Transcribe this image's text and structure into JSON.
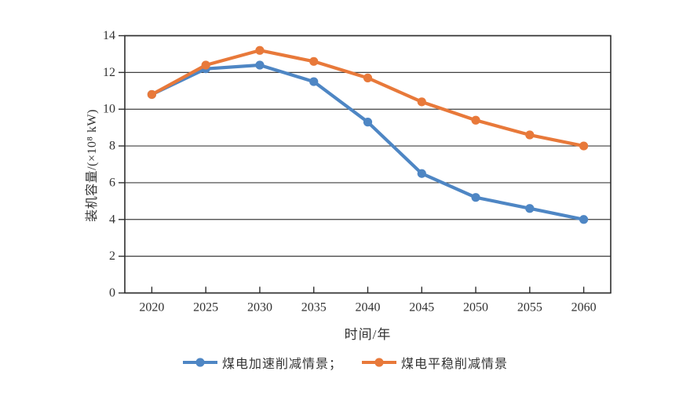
{
  "figure": {
    "background": "#ffffff",
    "axis_color": "#2f2f2f",
    "gridline_color": "#3f3f3f",
    "text_color": "#333333"
  },
  "chart_data": {
    "type": "line",
    "title": "",
    "categories": [
      "2020",
      "2025",
      "2030",
      "2035",
      "2040",
      "2045",
      "2050",
      "2055",
      "2060"
    ],
    "series": [
      {
        "name": "煤电加速削减情景",
        "color": "#4e86c4",
        "values": [
          10.8,
          12.2,
          12.4,
          11.5,
          9.3,
          6.5,
          5.2,
          4.6,
          4.0
        ]
      },
      {
        "name": "煤电平稳削减情景",
        "color": "#e8793a",
        "values": [
          10.8,
          12.4,
          13.2,
          12.6,
          11.7,
          10.4,
          9.4,
          8.6,
          8.0
        ]
      }
    ],
    "xlabel": "时间/年",
    "ylabel": "装机容量/(×10⁸ kW)",
    "ylim": [
      0,
      14
    ],
    "yticks": [
      0,
      2,
      4,
      6,
      8,
      10,
      12,
      14
    ],
    "grid": "horizontal",
    "plot_border": true,
    "marker": "circle",
    "legend_position": "bottom"
  },
  "legend": {
    "items": [
      {
        "label": "煤电加速削减情景；",
        "color": "#4e86c4"
      },
      {
        "label": "煤电平稳削减情景",
        "color": "#e8793a"
      }
    ]
  }
}
